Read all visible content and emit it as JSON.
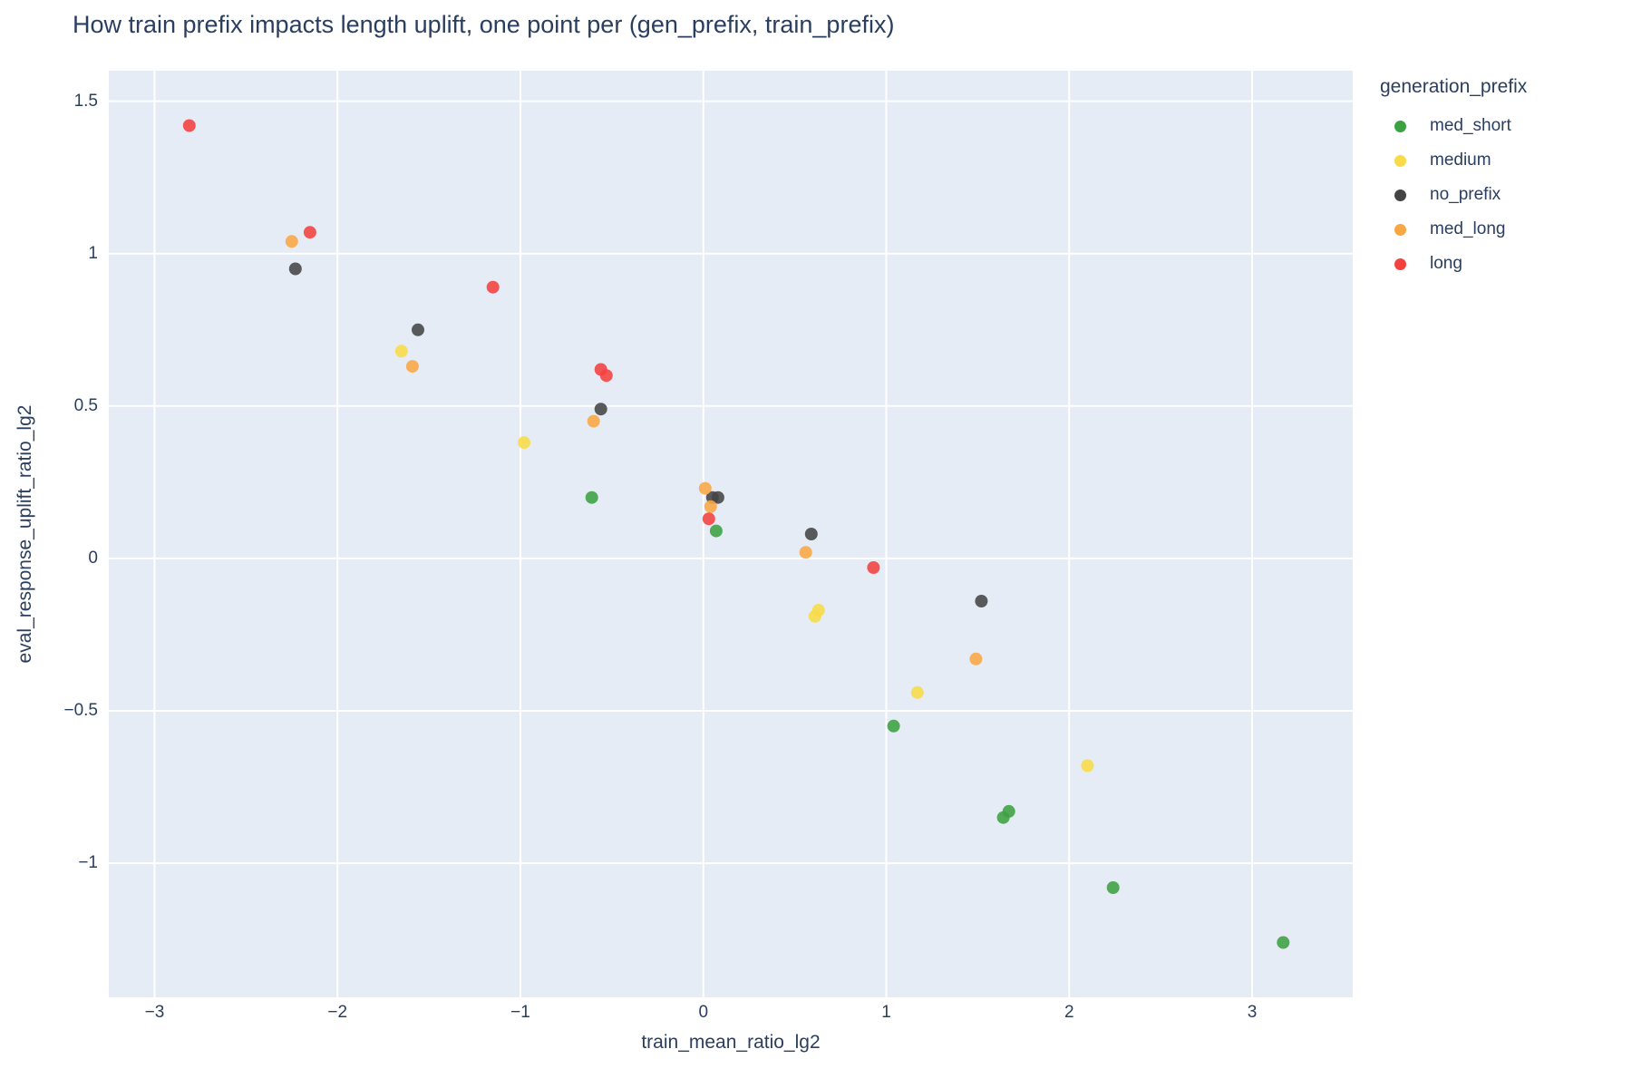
{
  "title": "How train prefix impacts length uplift, one point per (gen_prefix, train_prefix)",
  "colors": {
    "paper_bg": "#ffffff",
    "plot_bg": "#e5ecf6",
    "grid": "#ffffff",
    "text": "#2a3f5f"
  },
  "legend": {
    "title": "generation_prefix"
  },
  "chart_data": {
    "type": "scatter",
    "title": "How train prefix impacts length uplift, one point per (gen_prefix, train_prefix)",
    "xlabel": "train_mean_ratio_lg2",
    "ylabel": "eval_response_uplift_ratio_lg2",
    "xlim": [
      -3.25,
      3.55
    ],
    "ylim": [
      -1.44,
      1.6
    ],
    "x_ticks": [
      -3,
      -2,
      -1,
      0,
      1,
      2,
      3
    ],
    "y_ticks": [
      -1,
      -0.5,
      0,
      0.5,
      1,
      1.5
    ],
    "grid": true,
    "legend_title": "generation_prefix",
    "legend_position": "right",
    "marker_radius": 7,
    "marker_opacity": 0.88,
    "series": [
      {
        "name": "med_short",
        "color": "#3ca140",
        "points": [
          [
            -0.61,
            0.2
          ],
          [
            0.07,
            0.09
          ],
          [
            1.04,
            -0.55
          ],
          [
            1.64,
            -0.85
          ],
          [
            1.67,
            -0.83
          ],
          [
            2.24,
            -1.08
          ],
          [
            3.17,
            -1.26
          ]
        ]
      },
      {
        "name": "medium",
        "color": "#f8db46",
        "points": [
          [
            -1.65,
            0.68
          ],
          [
            -0.98,
            0.38
          ],
          [
            0.61,
            -0.19
          ],
          [
            0.63,
            -0.17
          ],
          [
            1.17,
            -0.44
          ],
          [
            2.1,
            -0.68
          ]
        ]
      },
      {
        "name": "no_prefix",
        "color": "#444444",
        "points": [
          [
            -2.23,
            0.95
          ],
          [
            -1.56,
            0.75
          ],
          [
            -0.56,
            0.49
          ],
          [
            0.05,
            0.2
          ],
          [
            0.08,
            0.2
          ],
          [
            0.59,
            0.08
          ],
          [
            1.52,
            -0.14
          ]
        ]
      },
      {
        "name": "med_long",
        "color": "#f9a743",
        "points": [
          [
            -2.25,
            1.04
          ],
          [
            -1.59,
            0.63
          ],
          [
            -0.6,
            0.45
          ],
          [
            0.01,
            0.23
          ],
          [
            0.04,
            0.17
          ],
          [
            0.56,
            0.02
          ],
          [
            1.49,
            -0.33
          ]
        ]
      },
      {
        "name": "long",
        "color": "#f4413d",
        "points": [
          [
            -2.81,
            1.42
          ],
          [
            -2.15,
            1.07
          ],
          [
            -1.15,
            0.89
          ],
          [
            -0.56,
            0.62
          ],
          [
            -0.53,
            0.6
          ],
          [
            0.03,
            0.13
          ],
          [
            0.93,
            -0.03
          ]
        ]
      }
    ]
  }
}
